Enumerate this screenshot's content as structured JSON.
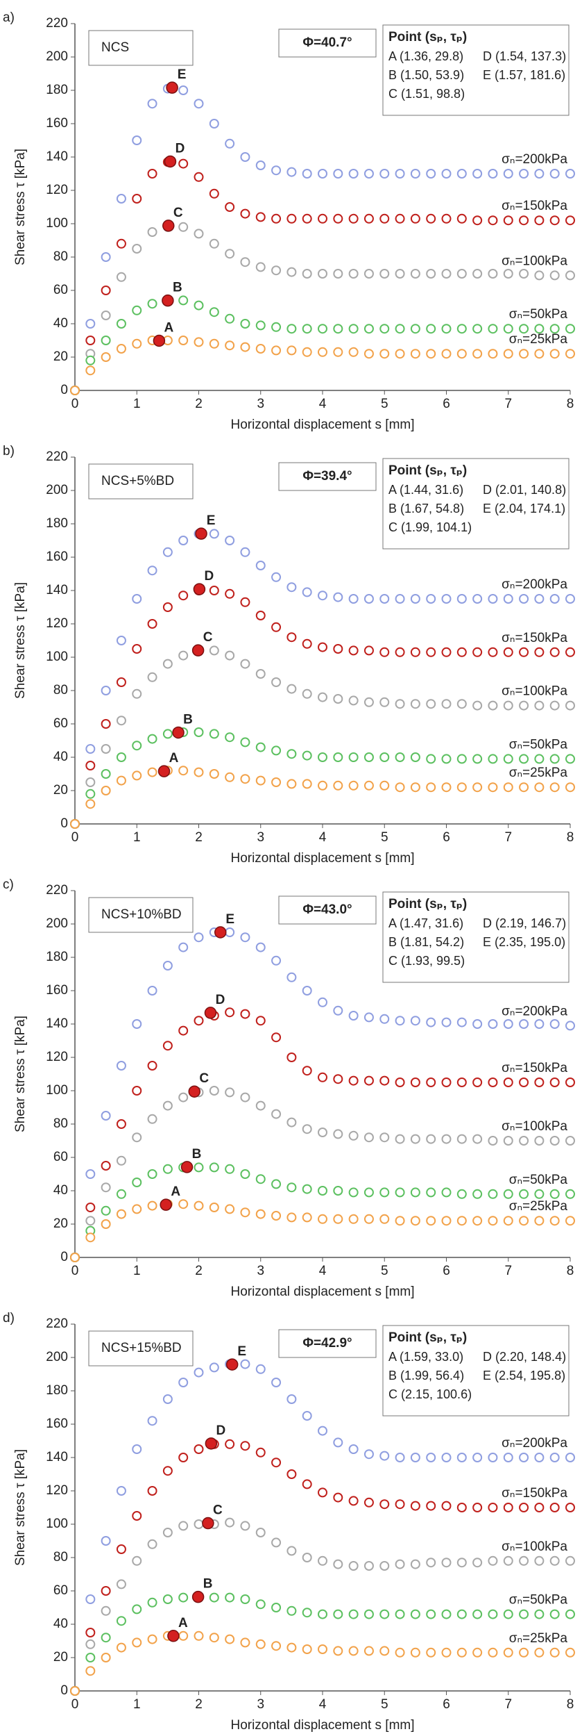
{
  "chart_data": [
    {
      "type": "scatter",
      "panel_label": "a)",
      "title": "NCS",
      "phi": "Φ=40.7°",
      "point_header": "Point (sₚ, τₚ)",
      "point_table": [
        "A (1.36, 29.8)",
        "D (1.54, 137.3)",
        "B (1.50, 53.9)",
        "E (1.57, 181.6)",
        "C (1.51, 98.8)"
      ],
      "x_label": "Horizontal displacement s [mm]",
      "y_label": "Shear stress τ [kPa]",
      "xlim": [
        0,
        8
      ],
      "ylim": [
        0,
        220
      ],
      "xticks": [
        0,
        1,
        2,
        3,
        4,
        5,
        6,
        7,
        8
      ],
      "yticks": [
        0,
        20,
        40,
        60,
        80,
        100,
        120,
        140,
        160,
        180,
        200,
        220
      ],
      "x": [
        0,
        0.25,
        0.5,
        0.75,
        1,
        1.25,
        1.5,
        1.75,
        2,
        2.25,
        2.5,
        2.75,
        3,
        3.25,
        3.5,
        3.75,
        4,
        4.25,
        4.5,
        4.75,
        5,
        5.25,
        5.5,
        5.75,
        6,
        6.25,
        6.5,
        6.75,
        7,
        7.25,
        7.5,
        7.75,
        8
      ],
      "series": [
        {
          "name": "σₙ=200kPa",
          "color": "#8f9ee0",
          "values": [
            0,
            40,
            80,
            115,
            150,
            172,
            181,
            180,
            172,
            160,
            148,
            140,
            135,
            132,
            131,
            130,
            130,
            130,
            130,
            130,
            130,
            130,
            130,
            130,
            130,
            130,
            130,
            130,
            130,
            130,
            130,
            130,
            130
          ]
        },
        {
          "name": "σₙ=150kPa",
          "color": "#c0201c",
          "values": [
            0,
            30,
            60,
            88,
            115,
            130,
            137,
            136,
            128,
            118,
            110,
            106,
            104,
            103,
            103,
            103,
            103,
            103,
            103,
            103,
            103,
            103,
            103,
            103,
            103,
            103,
            102,
            102,
            102,
            102,
            102,
            102,
            102
          ]
        },
        {
          "name": "σₙ=100kPa",
          "color": "#a8a8a8",
          "values": [
            0,
            22,
            45,
            68,
            85,
            95,
            98,
            98,
            94,
            88,
            82,
            77,
            74,
            72,
            71,
            70,
            70,
            70,
            70,
            70,
            70,
            70,
            70,
            70,
            70,
            70,
            70,
            70,
            70,
            70,
            69,
            69,
            69
          ]
        },
        {
          "name": "σₙ=50kPa",
          "color": "#5cc060",
          "values": [
            0,
            18,
            30,
            40,
            48,
            52,
            54,
            54,
            51,
            47,
            43,
            40,
            39,
            38,
            37,
            37,
            37,
            37,
            37,
            37,
            37,
            37,
            37,
            37,
            37,
            37,
            37,
            37,
            37,
            37,
            37,
            37,
            37
          ]
        },
        {
          "name": "σₙ=25kPa",
          "color": "#f2a24a",
          "values": [
            0,
            12,
            20,
            25,
            28,
            30,
            30,
            30,
            29,
            28,
            27,
            26,
            25,
            24,
            24,
            23,
            23,
            23,
            23,
            22,
            22,
            22,
            22,
            22,
            22,
            22,
            22,
            22,
            22,
            22,
            22,
            22,
            22
          ]
        }
      ],
      "peaks": {
        "labels": [
          "A",
          "B",
          "C",
          "D",
          "E"
        ],
        "x": [
          1.36,
          1.5,
          1.51,
          1.54,
          1.57
        ],
        "values": [
          29.8,
          53.9,
          98.8,
          137.3,
          181.6
        ],
        "color": "#d42020"
      }
    },
    {
      "type": "scatter",
      "panel_label": "b)",
      "title": "NCS+5%BD",
      "phi": "Φ=39.4°",
      "point_header": "Point (sₚ, τₚ)",
      "point_table": [
        "A (1.44, 31.6)",
        "D (2.01, 140.8)",
        "B (1.67, 54.8)",
        "E (2.04, 174.1)",
        "C (1.99, 104.1)"
      ],
      "x_label": "Horizontal displacement s [mm]",
      "y_label": "Shear stress τ [kPa]",
      "xlim": [
        0,
        8
      ],
      "ylim": [
        0,
        220
      ],
      "xticks": [
        0,
        1,
        2,
        3,
        4,
        5,
        6,
        7,
        8
      ],
      "yticks": [
        0,
        20,
        40,
        60,
        80,
        100,
        120,
        140,
        160,
        180,
        200,
        220
      ],
      "x": [
        0,
        0.25,
        0.5,
        0.75,
        1,
        1.25,
        1.5,
        1.75,
        2,
        2.25,
        2.5,
        2.75,
        3,
        3.25,
        3.5,
        3.75,
        4,
        4.25,
        4.5,
        4.75,
        5,
        5.25,
        5.5,
        5.75,
        6,
        6.25,
        6.5,
        6.75,
        7,
        7.25,
        7.5,
        7.75,
        8
      ],
      "series": [
        {
          "name": "σₙ=200kPa",
          "color": "#8f9ee0",
          "values": [
            0,
            45,
            80,
            110,
            135,
            152,
            163,
            170,
            174,
            174,
            170,
            163,
            155,
            148,
            142,
            139,
            137,
            136,
            135,
            135,
            135,
            135,
            135,
            135,
            135,
            135,
            135,
            135,
            135,
            135,
            135,
            135,
            135
          ]
        },
        {
          "name": "σₙ=150kPa",
          "color": "#c0201c",
          "values": [
            0,
            35,
            60,
            85,
            105,
            120,
            130,
            137,
            140,
            140,
            138,
            133,
            125,
            118,
            112,
            108,
            106,
            105,
            104,
            104,
            103,
            103,
            103,
            103,
            103,
            103,
            103,
            103,
            103,
            103,
            103,
            103,
            103
          ]
        },
        {
          "name": "σₙ=100kPa",
          "color": "#a8a8a8",
          "values": [
            0,
            25,
            45,
            62,
            78,
            88,
            96,
            101,
            104,
            104,
            101,
            96,
            90,
            85,
            81,
            78,
            76,
            75,
            74,
            73,
            73,
            72,
            72,
            72,
            72,
            72,
            71,
            71,
            71,
            71,
            71,
            71,
            71
          ]
        },
        {
          "name": "σₙ=50kPa",
          "color": "#5cc060",
          "values": [
            0,
            18,
            30,
            40,
            47,
            51,
            54,
            55,
            55,
            54,
            52,
            49,
            46,
            44,
            42,
            41,
            40,
            40,
            40,
            40,
            40,
            40,
            40,
            39,
            39,
            39,
            39,
            39,
            39,
            39,
            39,
            39,
            39
          ]
        },
        {
          "name": "σₙ=25kPa",
          "color": "#f2a24a",
          "values": [
            0,
            12,
            20,
            26,
            29,
            31,
            32,
            32,
            31,
            30,
            28,
            27,
            26,
            25,
            24,
            24,
            23,
            23,
            23,
            23,
            23,
            22,
            22,
            22,
            22,
            22,
            22,
            22,
            22,
            22,
            22,
            22,
            22
          ]
        }
      ],
      "peaks": {
        "labels": [
          "A",
          "B",
          "C",
          "D",
          "E"
        ],
        "x": [
          1.44,
          1.67,
          1.99,
          2.01,
          2.04
        ],
        "values": [
          31.6,
          54.8,
          104.1,
          140.8,
          174.1
        ],
        "color": "#d42020"
      }
    },
    {
      "type": "scatter",
      "panel_label": "c)",
      "title": "NCS+10%BD",
      "phi": "Φ=43.0°",
      "point_header": "Point (sₚ, τₚ)",
      "point_table": [
        "A (1.47, 31.6)",
        "D (2.19, 146.7)",
        "B (1.81, 54.2)",
        "E (2.35, 195.0)",
        "C (1.93, 99.5)"
      ],
      "x_label": "Horizontal displacement s [mm]",
      "y_label": "Shear stress τ [kPa]",
      "xlim": [
        0,
        8
      ],
      "ylim": [
        0,
        220
      ],
      "xticks": [
        0,
        1,
        2,
        3,
        4,
        5,
        6,
        7,
        8
      ],
      "yticks": [
        0,
        20,
        40,
        60,
        80,
        100,
        120,
        140,
        160,
        180,
        200,
        220
      ],
      "x": [
        0,
        0.25,
        0.5,
        0.75,
        1,
        1.25,
        1.5,
        1.75,
        2,
        2.25,
        2.5,
        2.75,
        3,
        3.25,
        3.5,
        3.75,
        4,
        4.25,
        4.5,
        4.75,
        5,
        5.25,
        5.5,
        5.75,
        6,
        6.25,
        6.5,
        6.75,
        7,
        7.25,
        7.5,
        7.75,
        8
      ],
      "series": [
        {
          "name": "σₙ=200kPa",
          "color": "#8f9ee0",
          "values": [
            0,
            50,
            85,
            115,
            140,
            160,
            175,
            186,
            192,
            195,
            195,
            192,
            186,
            178,
            168,
            160,
            153,
            148,
            145,
            144,
            143,
            142,
            142,
            141,
            141,
            141,
            140,
            140,
            140,
            140,
            140,
            140,
            139
          ]
        },
        {
          "name": "σₙ=150kPa",
          "color": "#c0201c",
          "values": [
            0,
            30,
            55,
            80,
            100,
            115,
            127,
            136,
            142,
            145,
            147,
            146,
            142,
            132,
            120,
            112,
            108,
            107,
            106,
            106,
            106,
            105,
            105,
            105,
            105,
            105,
            105,
            105,
            105,
            105,
            105,
            105,
            105
          ]
        },
        {
          "name": "σₙ=100kPa",
          "color": "#a8a8a8",
          "values": [
            0,
            22,
            42,
            58,
            72,
            83,
            91,
            96,
            99,
            100,
            99,
            96,
            91,
            86,
            81,
            77,
            75,
            74,
            73,
            72,
            72,
            71,
            71,
            71,
            71,
            71,
            71,
            70,
            70,
            70,
            70,
            70,
            70
          ]
        },
        {
          "name": "σₙ=50kPa",
          "color": "#5cc060",
          "values": [
            0,
            16,
            28,
            38,
            45,
            50,
            53,
            54,
            54,
            54,
            53,
            50,
            47,
            44,
            42,
            41,
            40,
            40,
            39,
            39,
            39,
            39,
            39,
            39,
            39,
            38,
            38,
            38,
            38,
            38,
            38,
            38,
            38
          ]
        },
        {
          "name": "σₙ=25kPa",
          "color": "#f2a24a",
          "values": [
            0,
            12,
            20,
            26,
            29,
            31,
            32,
            32,
            31,
            30,
            29,
            27,
            26,
            25,
            24,
            24,
            23,
            23,
            23,
            23,
            23,
            22,
            22,
            22,
            22,
            22,
            22,
            22,
            22,
            22,
            22,
            22,
            22
          ]
        }
      ],
      "peaks": {
        "labels": [
          "A",
          "B",
          "C",
          "D",
          "E"
        ],
        "x": [
          1.47,
          1.81,
          1.93,
          2.19,
          2.35
        ],
        "values": [
          31.6,
          54.2,
          99.5,
          146.7,
          195.0
        ],
        "color": "#d42020"
      }
    },
    {
      "type": "scatter",
      "panel_label": "d)",
      "title": "NCS+15%BD",
      "phi": "Φ=42.9°",
      "point_header": "Point (sₚ, τₚ)",
      "point_table": [
        "A (1.59, 33.0)",
        "D (2.20, 148.4)",
        "B (1.99, 56.4)",
        "E (2.54, 195.8)",
        "C (2.15, 100.6)"
      ],
      "x_label": "Horizontal displacement s [mm]",
      "y_label": "Shear stress τ [kPa]",
      "xlim": [
        0,
        8
      ],
      "ylim": [
        0,
        220
      ],
      "xticks": [
        0,
        1,
        2,
        3,
        4,
        5,
        6,
        7,
        8
      ],
      "yticks": [
        0,
        20,
        40,
        60,
        80,
        100,
        120,
        140,
        160,
        180,
        200,
        220
      ],
      "x": [
        0,
        0.25,
        0.5,
        0.75,
        1,
        1.25,
        1.5,
        1.75,
        2,
        2.25,
        2.5,
        2.75,
        3,
        3.25,
        3.5,
        3.75,
        4,
        4.25,
        4.5,
        4.75,
        5,
        5.25,
        5.5,
        5.75,
        6,
        6.25,
        6.5,
        6.75,
        7,
        7.25,
        7.5,
        7.75,
        8
      ],
      "series": [
        {
          "name": "σₙ=200kPa",
          "color": "#8f9ee0",
          "values": [
            0,
            55,
            90,
            120,
            145,
            162,
            175,
            185,
            191,
            194,
            196,
            196,
            193,
            185,
            175,
            165,
            156,
            149,
            145,
            142,
            141,
            140,
            140,
            140,
            140,
            140,
            140,
            140,
            140,
            140,
            140,
            140,
            140
          ]
        },
        {
          "name": "σₙ=150kPa",
          "color": "#c0201c",
          "values": [
            0,
            35,
            60,
            85,
            105,
            120,
            132,
            140,
            145,
            148,
            148,
            147,
            143,
            137,
            130,
            124,
            119,
            116,
            114,
            113,
            112,
            112,
            111,
            111,
            111,
            110,
            110,
            110,
            110,
            110,
            110,
            110,
            110
          ]
        },
        {
          "name": "σₙ=100kPa",
          "color": "#a8a8a8",
          "values": [
            0,
            28,
            48,
            64,
            78,
            88,
            95,
            99,
            100,
            100,
            101,
            99,
            95,
            89,
            84,
            80,
            78,
            76,
            75,
            75,
            75,
            76,
            76,
            77,
            77,
            77,
            77,
            78,
            78,
            78,
            78,
            78,
            78
          ]
        },
        {
          "name": "σₙ=50kPa",
          "color": "#5cc060",
          "values": [
            0,
            20,
            32,
            42,
            49,
            53,
            55,
            56,
            56,
            56,
            56,
            55,
            52,
            50,
            48,
            47,
            46,
            46,
            46,
            46,
            46,
            46,
            46,
            46,
            46,
            46,
            46,
            46,
            46,
            46,
            46,
            46,
            46
          ]
        },
        {
          "name": "σₙ=25kPa",
          "color": "#f2a24a",
          "values": [
            0,
            12,
            20,
            26,
            29,
            31,
            33,
            33,
            33,
            32,
            31,
            29,
            28,
            27,
            26,
            25,
            25,
            24,
            24,
            24,
            24,
            23,
            23,
            23,
            23,
            23,
            23,
            23,
            23,
            23,
            23,
            23,
            23
          ]
        }
      ],
      "peaks": {
        "labels": [
          "A",
          "B",
          "C",
          "D",
          "E"
        ],
        "x": [
          1.59,
          1.99,
          2.15,
          2.2,
          2.54
        ],
        "values": [
          33.0,
          56.4,
          100.6,
          148.4,
          195.8
        ],
        "color": "#d42020"
      }
    }
  ]
}
